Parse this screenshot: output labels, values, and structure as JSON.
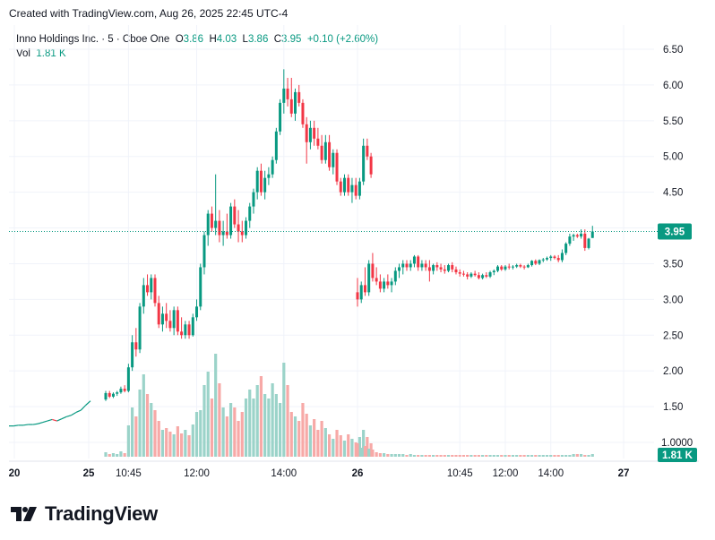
{
  "header": {
    "text": "Created with TradingView.com, Aug 26, 2025 22:45 UTC-4"
  },
  "legend": {
    "symbol": "Inno Holdings Inc. · 5 · Cboe One",
    "o_label": "O",
    "o_value": "3.86",
    "h_label": "H",
    "h_value": "4.03",
    "l_label": "L",
    "l_value": "3.86",
    "c_label": "C",
    "c_value": "3.95",
    "change": "+0.10 (+2.60%)",
    "vol_label": "Vol",
    "vol_value": "1.81 K"
  },
  "colors": {
    "up": "#089981",
    "down": "#f23645",
    "vol_up": "#9bd3c9",
    "vol_down": "#f7a9a7",
    "grid": "#f0f3fa",
    "text": "#131722"
  },
  "logo": {
    "text": "TradingView",
    "icon": "tradingview-logo-icon"
  },
  "chart_data": {
    "type": "candlestick",
    "title": "Inno Holdings Inc. · 5 · Cboe One",
    "y_ticks": [
      "6.50",
      "6.00",
      "5.50",
      "5.00",
      "4.50",
      "4.00",
      "3.50",
      "3.00",
      "2.50",
      "2.00",
      "1.50",
      "1.0000"
    ],
    "ylim": [
      1.0,
      6.5
    ],
    "x_ticks": [
      "20",
      "25",
      "10:45",
      "12:00",
      "14:00",
      "26",
      "10:45",
      "12:00",
      "14:00",
      "27"
    ],
    "last_price": {
      "value": 3.95,
      "label": "3.95"
    },
    "last_volume": {
      "label": "1.81 K"
    },
    "grid": true,
    "session1_candles": [
      {
        "x": "25",
        "o": 1.6,
        "h": 1.72,
        "l": 1.58,
        "c": 1.69
      },
      {
        "o": 1.69,
        "h": 1.72,
        "l": 1.62,
        "c": 1.64
      },
      {
        "o": 1.64,
        "h": 1.7,
        "l": 1.62,
        "c": 1.68
      },
      {
        "o": 1.68,
        "h": 1.72,
        "l": 1.65,
        "c": 1.7
      },
      {
        "o": 1.7,
        "h": 1.78,
        "l": 1.68,
        "c": 1.75
      },
      {
        "o": 1.75,
        "h": 1.8,
        "l": 1.7,
        "c": 1.72
      },
      {
        "x": "10:45",
        "o": 1.72,
        "h": 2.1,
        "l": 1.7,
        "c": 2.05
      },
      {
        "o": 2.05,
        "h": 2.5,
        "l": 2.0,
        "c": 2.4
      },
      {
        "o": 2.4,
        "h": 2.6,
        "l": 2.2,
        "c": 2.3
      },
      {
        "o": 2.3,
        "h": 2.95,
        "l": 2.25,
        "c": 2.9
      },
      {
        "o": 2.9,
        "h": 3.3,
        "l": 2.8,
        "c": 3.2
      },
      {
        "o": 3.2,
        "h": 3.35,
        "l": 3.05,
        "c": 3.1
      },
      {
        "o": 3.1,
        "h": 3.35,
        "l": 3.0,
        "c": 3.3
      },
      {
        "o": 3.3,
        "h": 3.35,
        "l": 2.9,
        "c": 2.95
      },
      {
        "o": 2.95,
        "h": 3.05,
        "l": 2.6,
        "c": 2.65
      },
      {
        "o": 2.65,
        "h": 2.9,
        "l": 2.55,
        "c": 2.8
      },
      {
        "o": 2.8,
        "h": 2.95,
        "l": 2.6,
        "c": 2.7
      },
      {
        "o": 2.7,
        "h": 2.85,
        "l": 2.55,
        "c": 2.6
      },
      {
        "o": 2.6,
        "h": 2.9,
        "l": 2.5,
        "c": 2.85
      },
      {
        "o": 2.85,
        "h": 2.9,
        "l": 2.5,
        "c": 2.55
      },
      {
        "o": 2.55,
        "h": 2.75,
        "l": 2.45,
        "c": 2.5
      },
      {
        "o": 2.5,
        "h": 2.7,
        "l": 2.45,
        "c": 2.65
      },
      {
        "o": 2.65,
        "h": 2.7,
        "l": 2.45,
        "c": 2.5
      },
      {
        "o": 2.5,
        "h": 2.8,
        "l": 2.48,
        "c": 2.75
      },
      {
        "x": "12:00",
        "o": 2.75,
        "h": 3.0,
        "l": 2.7,
        "c": 2.9
      },
      {
        "o": 2.9,
        "h": 3.5,
        "l": 2.85,
        "c": 3.45
      },
      {
        "o": 3.45,
        "h": 3.95,
        "l": 3.35,
        "c": 3.9
      },
      {
        "o": 3.9,
        "h": 4.25,
        "l": 3.75,
        "c": 4.2
      },
      {
        "o": 4.2,
        "h": 4.3,
        "l": 3.95,
        "c": 4.0
      },
      {
        "o": 4.0,
        "h": 4.75,
        "l": 3.9,
        "c": 4.1
      },
      {
        "o": 4.1,
        "h": 4.25,
        "l": 3.8,
        "c": 3.9
      },
      {
        "o": 3.9,
        "h": 4.1,
        "l": 3.75,
        "c": 3.95
      },
      {
        "o": 3.95,
        "h": 4.2,
        "l": 3.85,
        "c": 3.9
      },
      {
        "o": 3.9,
        "h": 4.35,
        "l": 3.85,
        "c": 4.3
      },
      {
        "o": 4.3,
        "h": 4.4,
        "l": 4.0,
        "c": 4.05
      },
      {
        "o": 4.05,
        "h": 4.25,
        "l": 3.8,
        "c": 3.95
      },
      {
        "o": 3.95,
        "h": 4.1,
        "l": 3.8,
        "c": 3.9
      },
      {
        "o": 3.9,
        "h": 4.15,
        "l": 3.85,
        "c": 4.1
      },
      {
        "o": 4.1,
        "h": 4.35,
        "l": 4.0,
        "c": 4.3
      },
      {
        "o": 4.3,
        "h": 4.55,
        "l": 4.2,
        "c": 4.5
      },
      {
        "o": 4.5,
        "h": 4.85,
        "l": 4.4,
        "c": 4.8
      },
      {
        "o": 4.8,
        "h": 4.9,
        "l": 4.45,
        "c": 4.5
      },
      {
        "o": 4.5,
        "h": 4.8,
        "l": 4.4,
        "c": 4.7
      },
      {
        "o": 4.7,
        "h": 4.85,
        "l": 4.6,
        "c": 4.75
      },
      {
        "o": 4.75,
        "h": 5.0,
        "l": 4.7,
        "c": 4.95
      },
      {
        "o": 4.95,
        "h": 5.4,
        "l": 4.9,
        "c": 5.35
      },
      {
        "o": 5.35,
        "h": 5.8,
        "l": 5.3,
        "c": 5.75
      },
      {
        "x": "14:00",
        "o": 5.75,
        "h": 6.22,
        "l": 5.6,
        "c": 5.95
      },
      {
        "o": 5.95,
        "h": 6.1,
        "l": 5.7,
        "c": 5.8
      },
      {
        "o": 5.8,
        "h": 6.1,
        "l": 5.55,
        "c": 5.6
      },
      {
        "o": 5.6,
        "h": 5.95,
        "l": 5.5,
        "c": 5.9
      },
      {
        "o": 5.9,
        "h": 6.0,
        "l": 5.7,
        "c": 5.75
      },
      {
        "o": 5.75,
        "h": 5.8,
        "l": 5.4,
        "c": 5.45
      },
      {
        "o": 5.45,
        "h": 5.55,
        "l": 4.9,
        "c": 5.2
      },
      {
        "o": 5.2,
        "h": 5.5,
        "l": 5.1,
        "c": 5.4
      },
      {
        "o": 5.4,
        "h": 5.5,
        "l": 5.15,
        "c": 5.25
      },
      {
        "o": 5.25,
        "h": 5.4,
        "l": 5.1,
        "c": 5.15
      },
      {
        "o": 5.15,
        "h": 5.3,
        "l": 4.9,
        "c": 4.95
      },
      {
        "o": 4.95,
        "h": 5.3,
        "l": 4.9,
        "c": 5.2
      },
      {
        "o": 5.2,
        "h": 5.3,
        "l": 4.8,
        "c": 4.85
      },
      {
        "o": 4.85,
        "h": 5.1,
        "l": 4.75,
        "c": 5.05
      },
      {
        "o": 5.05,
        "h": 5.1,
        "l": 4.6,
        "c": 4.65
      },
      {
        "o": 4.65,
        "h": 4.7,
        "l": 4.45,
        "c": 4.5
      },
      {
        "o": 4.5,
        "h": 4.75,
        "l": 4.45,
        "c": 4.7
      },
      {
        "o": 4.7,
        "h": 4.75,
        "l": 4.45,
        "c": 4.5
      },
      {
        "o": 4.5,
        "h": 4.7,
        "l": 4.35,
        "c": 4.6
      },
      {
        "o": 4.6,
        "h": 4.7,
        "l": 4.4,
        "c": 4.45
      },
      {
        "o": 4.45,
        "h": 4.7,
        "l": 4.4,
        "c": 4.65
      },
      {
        "o": 4.65,
        "h": 5.25,
        "l": 4.6,
        "c": 5.15
      },
      {
        "o": 5.15,
        "h": 5.25,
        "l": 4.95,
        "c": 5.0
      },
      {
        "o": 5.0,
        "h": 5.05,
        "l": 4.7,
        "c": 4.75
      }
    ],
    "session2_candles": [
      {
        "x": "26",
        "o": 3.1,
        "h": 3.3,
        "l": 2.9,
        "c": 3.0
      },
      {
        "o": 3.0,
        "h": 3.25,
        "l": 2.95,
        "c": 3.2
      },
      {
        "o": 3.2,
        "h": 3.45,
        "l": 3.05,
        "c": 3.1
      },
      {
        "o": 3.1,
        "h": 3.55,
        "l": 3.05,
        "c": 3.5
      },
      {
        "o": 3.5,
        "h": 3.65,
        "l": 3.25,
        "c": 3.3
      },
      {
        "o": 3.3,
        "h": 3.45,
        "l": 3.2,
        "c": 3.25
      },
      {
        "o": 3.25,
        "h": 3.35,
        "l": 3.1,
        "c": 3.15
      },
      {
        "o": 3.15,
        "h": 3.3,
        "l": 3.1,
        "c": 3.25
      },
      {
        "o": 3.25,
        "h": 3.35,
        "l": 3.15,
        "c": 3.2
      },
      {
        "o": 3.2,
        "h": 3.3,
        "l": 3.1,
        "c": 3.25
      },
      {
        "o": 3.25,
        "h": 3.45,
        "l": 3.2,
        "c": 3.4
      },
      {
        "o": 3.4,
        "h": 3.5,
        "l": 3.3,
        "c": 3.45
      },
      {
        "o": 3.45,
        "h": 3.55,
        "l": 3.35,
        "c": 3.5
      },
      {
        "o": 3.5,
        "h": 3.55,
        "l": 3.4,
        "c": 3.45
      },
      {
        "o": 3.45,
        "h": 3.55,
        "l": 3.4,
        "c": 3.5
      },
      {
        "o": 3.5,
        "h": 3.62,
        "l": 3.45,
        "c": 3.6
      },
      {
        "o": 3.6,
        "h": 3.62,
        "l": 3.4,
        "c": 3.45
      },
      {
        "o": 3.45,
        "h": 3.55,
        "l": 3.4,
        "c": 3.5
      },
      {
        "o": 3.5,
        "h": 3.55,
        "l": 3.4,
        "c": 3.45
      },
      {
        "o": 3.45,
        "h": 3.55,
        "l": 3.25,
        "c": 3.4
      },
      {
        "o": 3.4,
        "h": 3.5,
        "l": 3.35,
        "c": 3.48
      },
      {
        "o": 3.48,
        "h": 3.52,
        "l": 3.4,
        "c": 3.45
      },
      {
        "o": 3.45,
        "h": 3.5,
        "l": 3.38,
        "c": 3.42
      },
      {
        "o": 3.42,
        "h": 3.48,
        "l": 3.36,
        "c": 3.4
      },
      {
        "o": 3.4,
        "h": 3.5,
        "l": 3.38,
        "c": 3.48
      },
      {
        "o": 3.48,
        "h": 3.52,
        "l": 3.38,
        "c": 3.42
      },
      {
        "o": 3.42,
        "h": 3.46,
        "l": 3.35,
        "c": 3.38
      },
      {
        "x": "10:45",
        "o": 3.38,
        "h": 3.42,
        "l": 3.32,
        "c": 3.36
      },
      {
        "o": 3.36,
        "h": 3.4,
        "l": 3.32,
        "c": 3.35
      },
      {
        "o": 3.35,
        "h": 3.38,
        "l": 3.28,
        "c": 3.32
      },
      {
        "o": 3.32,
        "h": 3.38,
        "l": 3.3,
        "c": 3.36
      },
      {
        "o": 3.36,
        "h": 3.4,
        "l": 3.32,
        "c": 3.34
      },
      {
        "o": 3.34,
        "h": 3.38,
        "l": 3.28,
        "c": 3.3
      },
      {
        "o": 3.3,
        "h": 3.36,
        "l": 3.28,
        "c": 3.34
      },
      {
        "o": 3.34,
        "h": 3.38,
        "l": 3.3,
        "c": 3.32
      },
      {
        "o": 3.32,
        "h": 3.4,
        "l": 3.3,
        "c": 3.38
      },
      {
        "o": 3.38,
        "h": 3.42,
        "l": 3.34,
        "c": 3.4
      },
      {
        "o": 3.4,
        "h": 3.48,
        "l": 3.38,
        "c": 3.46
      },
      {
        "o": 3.46,
        "h": 3.48,
        "l": 3.4,
        "c": 3.42
      },
      {
        "x": "12:00",
        "o": 3.42,
        "h": 3.48,
        "l": 3.4,
        "c": 3.46
      },
      {
        "o": 3.46,
        "h": 3.5,
        "l": 3.42,
        "c": 3.45
      },
      {
        "o": 3.45,
        "h": 3.48,
        "l": 3.42,
        "c": 3.46
      },
      {
        "o": 3.46,
        "h": 3.5,
        "l": 3.44,
        "c": 3.48
      },
      {
        "o": 3.48,
        "h": 3.5,
        "l": 3.44,
        "c": 3.46
      },
      {
        "o": 3.46,
        "h": 3.48,
        "l": 3.42,
        "c": 3.45
      },
      {
        "o": 3.45,
        "h": 3.5,
        "l": 3.44,
        "c": 3.48
      },
      {
        "o": 3.48,
        "h": 3.55,
        "l": 3.46,
        "c": 3.54
      },
      {
        "o": 3.54,
        "h": 3.56,
        "l": 3.48,
        "c": 3.5
      },
      {
        "o": 3.5,
        "h": 3.56,
        "l": 3.48,
        "c": 3.55
      },
      {
        "o": 3.55,
        "h": 3.58,
        "l": 3.52,
        "c": 3.56
      },
      {
        "o": 3.56,
        "h": 3.6,
        "l": 3.54,
        "c": 3.58
      },
      {
        "x": "14:00",
        "o": 3.58,
        "h": 3.62,
        "l": 3.54,
        "c": 3.6
      },
      {
        "o": 3.6,
        "h": 3.62,
        "l": 3.56,
        "c": 3.58
      },
      {
        "o": 3.58,
        "h": 3.62,
        "l": 3.52,
        "c": 3.55
      },
      {
        "o": 3.55,
        "h": 3.7,
        "l": 3.52,
        "c": 3.65
      },
      {
        "o": 3.65,
        "h": 3.8,
        "l": 3.62,
        "c": 3.78
      },
      {
        "o": 3.78,
        "h": 3.92,
        "l": 3.75,
        "c": 3.88
      },
      {
        "o": 3.88,
        "h": 3.92,
        "l": 3.82,
        "c": 3.9
      },
      {
        "o": 3.9,
        "h": 3.92,
        "l": 3.86,
        "c": 3.88
      },
      {
        "o": 3.88,
        "h": 3.98,
        "l": 3.85,
        "c": 3.92
      },
      {
        "o": 3.92,
        "h": 3.98,
        "l": 3.68,
        "c": 3.72
      },
      {
        "o": 3.72,
        "h": 3.86,
        "l": 3.7,
        "c": 3.85
      },
      {
        "o": 3.86,
        "h": 4.03,
        "l": 3.86,
        "c": 3.95
      }
    ],
    "pre_session": [
      {
        "x": "20",
        "v": 1.23
      },
      {
        "v": 1.23
      },
      {
        "v": 1.24
      },
      {
        "v": 1.24
      },
      {
        "v": 1.25
      },
      {
        "v": 1.25
      },
      {
        "v": 1.26
      },
      {
        "v": 1.28
      },
      {
        "v": 1.3
      },
      {
        "v": 1.32
      },
      {
        "v": 1.3
      },
      {
        "v": 1.33
      },
      {
        "v": 1.36
      },
      {
        "v": 1.38
      },
      {
        "v": 1.42
      },
      {
        "v": 1.45
      },
      {
        "v": 1.52
      },
      {
        "v": 1.58
      }
    ],
    "session1_volume": [
      0.5,
      0.3,
      0.4,
      0.3,
      0.6,
      0.4,
      3.5,
      5.5,
      4.5,
      7.5,
      9.2,
      7.0,
      6.0,
      5.2,
      4.0,
      3.0,
      3.2,
      2.8,
      2.5,
      3.4,
      2.6,
      3.0,
      2.4,
      3.6,
      5.0,
      5.2,
      8.0,
      9.5,
      6.5,
      11.5,
      8.2,
      5.5,
      4.5,
      6.0,
      5.5,
      4.0,
      5.0,
      6.5,
      7.5,
      6.5,
      8.0,
      9.0,
      7.0,
      6.5,
      8.2,
      7.0,
      6.0,
      10.5,
      8.0,
      5.0,
      4.5,
      4.0,
      6.0,
      4.8,
      3.5,
      4.2,
      3.0,
      4.0,
      3.2,
      2.5,
      2.0,
      3.0,
      2.4,
      1.8,
      2.5,
      2.0,
      1.6,
      2.2,
      3.0,
      2.2,
      1.5
    ],
    "session2_volume": [
      1.5,
      1.0,
      1.2,
      0.9,
      0.8,
      0.5,
      0.4,
      0.4,
      0.3,
      0.3,
      0.3,
      0.3,
      0.3,
      0.2,
      0.3,
      0.2,
      0.2,
      0.2,
      0.2,
      0.2,
      0.2,
      0.2,
      0.2,
      0.2,
      0.2,
      0.2,
      0.2,
      0.2,
      0.2,
      0.2,
      0.2,
      0.2,
      0.2,
      0.2,
      0.2,
      0.2,
      0.2,
      0.2,
      0.2,
      0.2,
      0.2,
      0.2,
      0.2,
      0.2,
      0.2,
      0.2,
      0.2,
      0.2,
      0.2,
      0.2,
      0.2,
      0.2,
      0.2,
      0.2,
      0.2,
      0.2,
      0.2,
      0.3,
      0.3,
      0.3,
      0.2,
      0.2,
      0.3,
      0.3,
      0.4
    ]
  }
}
